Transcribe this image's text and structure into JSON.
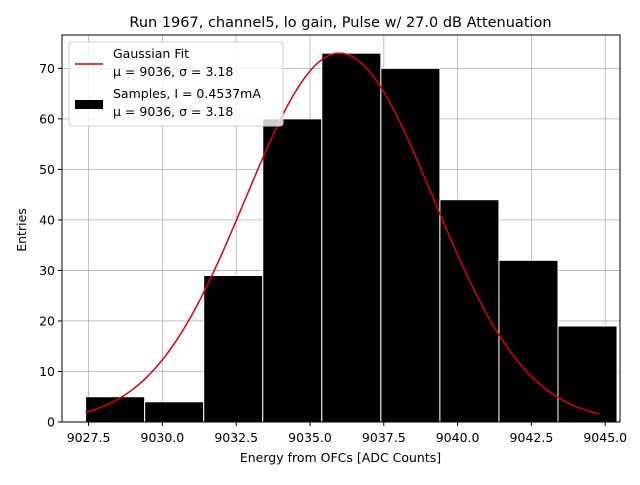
{
  "chart_data": {
    "type": "bar",
    "title": "Run 1967, channel5, lo gain, Pulse w/ 27.0 dB Attenuation",
    "xlabel": "Energy from OFCs [ADC Counts]",
    "ylabel": "Entries",
    "xlim": [
      9026.6,
      9045.5
    ],
    "ylim": [
      0,
      76.6
    ],
    "xticks": [
      9027.5,
      9030.0,
      9032.5,
      9035.0,
      9037.5,
      9040.0,
      9042.5,
      9045.0
    ],
    "xtick_labels": [
      "9027.5",
      "9030.0",
      "9032.5",
      "9035.0",
      "9037.5",
      "9040.0",
      "9042.5",
      "9045.0"
    ],
    "yticks": [
      0,
      10,
      20,
      30,
      40,
      50,
      60,
      70
    ],
    "ytick_labels": [
      "0",
      "10",
      "20",
      "30",
      "40",
      "50",
      "60",
      "70"
    ],
    "grid": true,
    "legend_position": "top-left",
    "bins": [
      {
        "x0": 9027.4,
        "x1": 9029.4,
        "count": 5
      },
      {
        "x0": 9029.4,
        "x1": 9031.4,
        "count": 4
      },
      {
        "x0": 9031.4,
        "x1": 9033.4,
        "count": 29
      },
      {
        "x0": 9033.4,
        "x1": 9035.4,
        "count": 60
      },
      {
        "x0": 9035.4,
        "x1": 9037.4,
        "count": 73
      },
      {
        "x0": 9037.4,
        "x1": 9039.4,
        "count": 70
      },
      {
        "x0": 9039.4,
        "x1": 9041.4,
        "count": 44
      },
      {
        "x0": 9041.4,
        "x1": 9043.4,
        "count": 32
      },
      {
        "x0": 9043.4,
        "x1": 9045.4,
        "count": 19
      }
    ],
    "fit": {
      "type": "gaussian",
      "mu": 9036.0,
      "sigma": 3.18,
      "amplitude": 73,
      "x_range": [
        9027.4,
        9044.8
      ],
      "color": "#e00000"
    },
    "series": [
      {
        "name": "Gaussian Fit",
        "color": "#e00000"
      },
      {
        "name": "Samples, I = 0.4537mA",
        "color": "#000000"
      }
    ],
    "legend": [
      {
        "line1": "Gaussian Fit",
        "line2": "μ = 9036, σ = 3.18"
      },
      {
        "line1": "Samples, I = 0.4537mA",
        "line2": "μ = 9036, σ = 3.18"
      }
    ],
    "colors": {
      "bar_fill": "#000000",
      "bar_edge": "#ffffff",
      "grid": "#b0b0b0",
      "fit": "#e00000"
    }
  }
}
